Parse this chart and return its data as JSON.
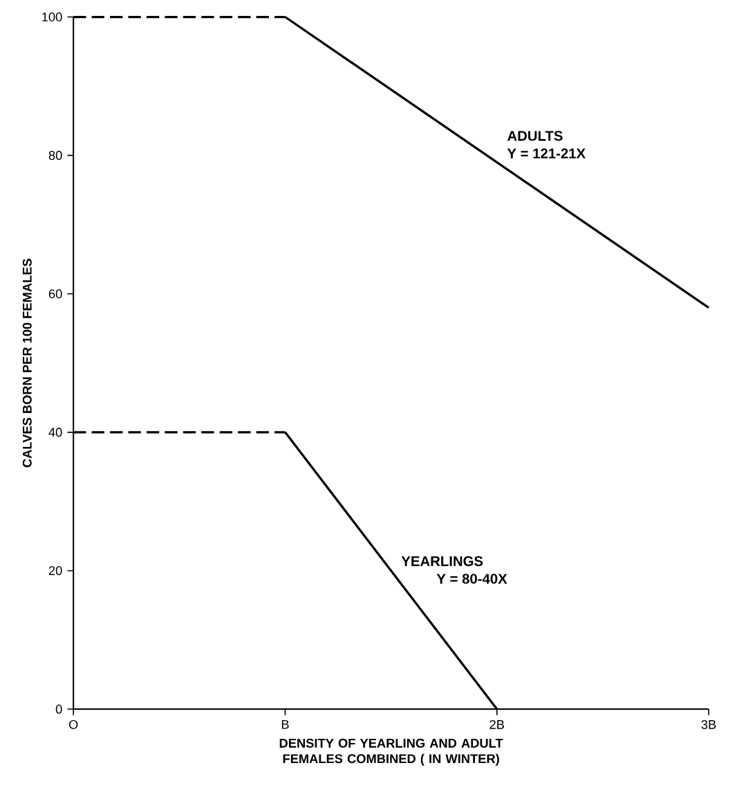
{
  "chart_data": {
    "type": "line",
    "xlabel": "DENSITY OF YEARLING AND ADULT FEMALES COMBINED ( IN WINTER)",
    "ylabel": "CALVES BORN PER 100 FEMALES",
    "xlim": [
      0,
      3
    ],
    "ylim": [
      0,
      100
    ],
    "xticks": [
      {
        "value": 0,
        "label": "O"
      },
      {
        "value": 1,
        "label": "B"
      },
      {
        "value": 2,
        "label": "2B"
      },
      {
        "value": 3,
        "label": "3B"
      }
    ],
    "yticks": [
      0,
      20,
      40,
      60,
      80,
      100
    ],
    "series": [
      {
        "color": "#000000",
        "line_style": "dashed",
        "x": [
          0,
          1
        ],
        "values": [
          100,
          100
        ]
      },
      {
        "name": "ADULTS",
        "color": "#000000",
        "line_style": "solid",
        "x": [
          1,
          3
        ],
        "values": [
          100,
          58
        ]
      },
      {
        "color": "#000000",
        "line_style": "dashed",
        "x": [
          0,
          1
        ],
        "values": [
          40,
          40
        ]
      },
      {
        "name": "YEARLINGS",
        "color": "#000000",
        "line_style": "solid",
        "x": [
          1,
          2
        ],
        "values": [
          40,
          0
        ]
      }
    ],
    "annotations": [
      "Y = 121-21X",
      "Y = 80-40X"
    ]
  }
}
